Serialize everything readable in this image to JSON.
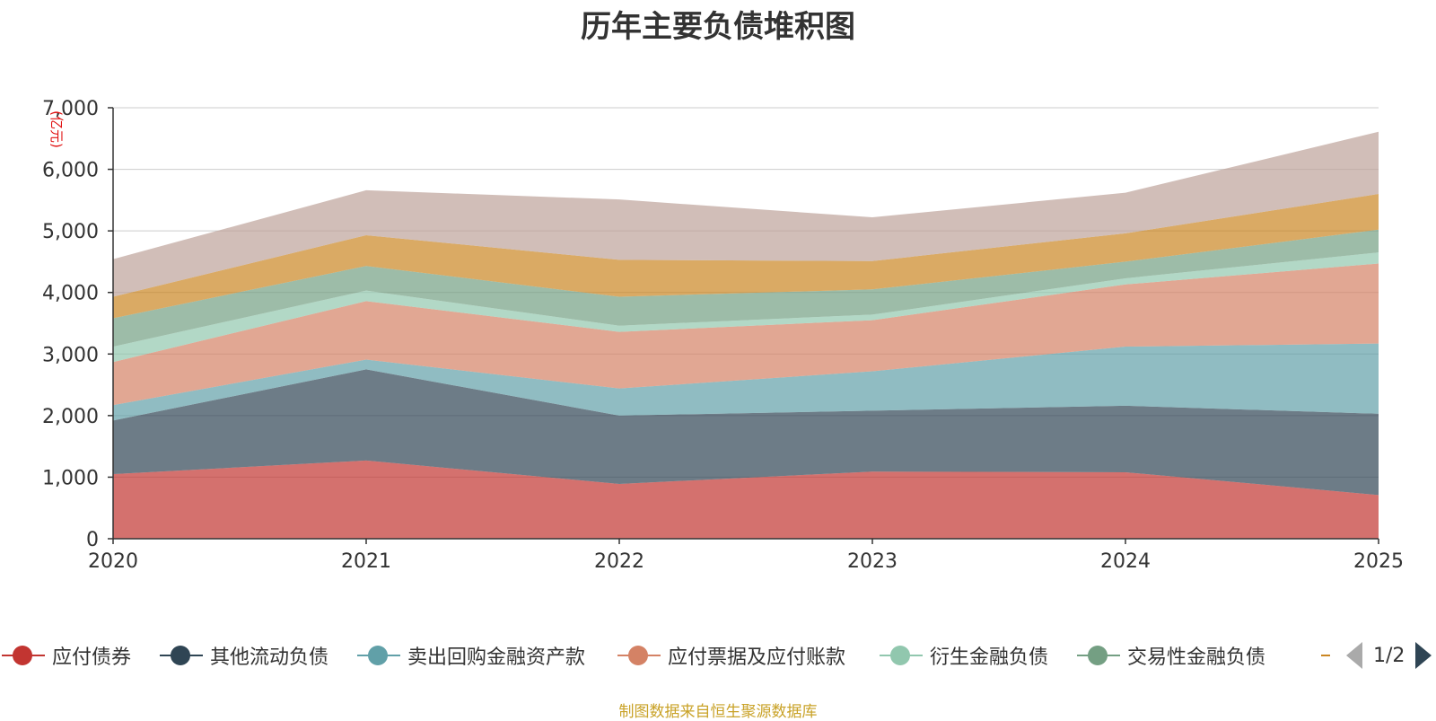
{
  "chart_data": {
    "type": "area",
    "stacked": true,
    "title": "历年主要负债堆积图",
    "ylabel": "(亿元)",
    "xlabel": "",
    "categories": [
      "2020",
      "2021",
      "2022",
      "2023",
      "2024",
      "2025"
    ],
    "ylim": [
      0,
      7000
    ],
    "yticks": [
      0,
      1000,
      2000,
      3000,
      4000,
      5000,
      6000,
      7000
    ],
    "ytick_labels": [
      "0",
      "1,000",
      "2,000",
      "3,000",
      "4,000",
      "5,000",
      "6,000",
      "7,000"
    ],
    "grid": true,
    "series": [
      {
        "name": "应付债券",
        "color": "#c23531",
        "values": [
          1050,
          1270,
          890,
          1090,
          1080,
          710
        ]
      },
      {
        "name": "其他流动负债",
        "color": "#2f4554",
        "values": [
          870,
          1480,
          1110,
          990,
          1080,
          1320
        ]
      },
      {
        "name": "卖出回购金融资产款",
        "color": "#61a0a8",
        "values": [
          250,
          160,
          440,
          640,
          960,
          1140
        ]
      },
      {
        "name": "应付票据及应付账款",
        "color": "#d48265",
        "values": [
          700,
          950,
          920,
          830,
          1010,
          1300
        ]
      },
      {
        "name": "衍生金融负债",
        "color": "#91c7ae",
        "values": [
          250,
          170,
          100,
          90,
          100,
          180
        ]
      },
      {
        "name": "交易性金融负债",
        "color": "#749f83",
        "values": [
          460,
          400,
          470,
          410,
          270,
          370
        ]
      },
      {
        "name": "",
        "color": "#ca8622",
        "values": [
          350,
          500,
          600,
          460,
          460,
          580
        ]
      },
      {
        "name": "",
        "color": "#bda29a",
        "values": [
          610,
          730,
          980,
          710,
          660,
          1010
        ]
      }
    ],
    "legend": {
      "position": "bottom",
      "page": "1/2"
    }
  },
  "source_note": "制图数据来自恒生聚源数据库"
}
